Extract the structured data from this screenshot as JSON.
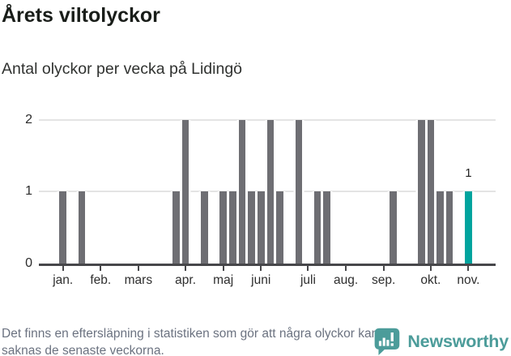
{
  "header": {
    "title": "Årets viltolyckor",
    "subtitle": "Antal olyckor per vecka på Lidingö"
  },
  "chart_data": {
    "type": "bar",
    "title": "Årets viltolyckor",
    "subtitle": "Antal olyckor per vecka på Lidingö",
    "xlabel": "",
    "ylabel": "",
    "ylim": [
      0,
      2
    ],
    "y_ticks": [
      0,
      1,
      2
    ],
    "grid": "horizontal",
    "weeks": [
      1,
      2,
      3,
      4,
      5,
      6,
      7,
      8,
      9,
      10,
      11,
      12,
      13,
      14,
      15,
      16,
      17,
      18,
      19,
      20,
      21,
      22,
      23,
      24,
      25,
      26,
      27,
      28,
      29,
      30,
      31,
      32,
      33,
      34,
      35,
      36,
      37,
      38,
      39,
      40,
      41,
      42,
      43,
      44
    ],
    "values": [
      1,
      0,
      1,
      0,
      0,
      0,
      0,
      0,
      0,
      0,
      0,
      0,
      1,
      2,
      0,
      1,
      0,
      1,
      1,
      2,
      1,
      1,
      2,
      1,
      0,
      2,
      0,
      1,
      1,
      0,
      0,
      0,
      0,
      0,
      0,
      1,
      0,
      0,
      2,
      2,
      1,
      1,
      0,
      1
    ],
    "month_ticks": [
      {
        "label": "jan.",
        "week": 1
      },
      {
        "label": "feb.",
        "week": 5
      },
      {
        "label": "mars",
        "week": 9
      },
      {
        "label": "apr.",
        "week": 14
      },
      {
        "label": "maj",
        "week": 18
      },
      {
        "label": "juni",
        "week": 22
      },
      {
        "label": "juli",
        "week": 27
      },
      {
        "label": "aug.",
        "week": 31
      },
      {
        "label": "sep.",
        "week": 35
      },
      {
        "label": "okt.",
        "week": 40
      },
      {
        "label": "nov.",
        "week": 44
      }
    ],
    "highlight": {
      "week": 44,
      "value": 1,
      "label": "1"
    },
    "colors": {
      "bar": "#6e6e73",
      "highlight": "#00a49e",
      "gridline": "#e4e4e4",
      "axis": "#47474a"
    }
  },
  "footer": {
    "note": "Det finns en eftersläpning i statistiken som gör att några olyckor kan saknas de senaste veckorna.",
    "brand": "Newsworthy"
  }
}
